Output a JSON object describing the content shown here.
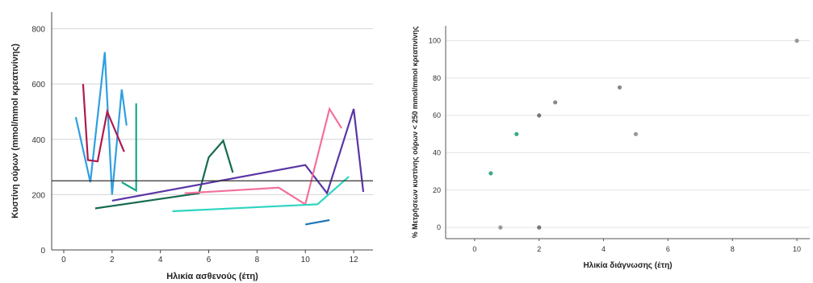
{
  "chart_data": [
    {
      "type": "line",
      "title": "",
      "xlabel": "Ηλικία ασθενούς (έτη)",
      "ylabel": "Κυστίνη ούρων (mmol/mmol κρεατινίνης)",
      "xlim": [
        -0.5,
        12.8
      ],
      "ylim": [
        0,
        860
      ],
      "xticks": [
        0,
        2,
        4,
        6,
        8,
        10,
        12
      ],
      "yticks": [
        0,
        200,
        400,
        600,
        800
      ],
      "grid": "horizontal",
      "reference_line": 250,
      "series": [
        {
          "color": "#2f9fe0",
          "x": [
            0.5,
            1.1,
            1.7,
            2.0,
            2.4,
            2.6
          ],
          "y": [
            480,
            245,
            715,
            200,
            580,
            450
          ]
        },
        {
          "color": "#b0184f",
          "x": [
            0.8,
            1.0,
            1.4,
            1.8,
            2.5
          ],
          "y": [
            600,
            325,
            320,
            500,
            355
          ]
        },
        {
          "color": "#17a88a",
          "x": [
            2.4,
            3.0,
            3.0
          ],
          "y": [
            245,
            215,
            530
          ]
        },
        {
          "color": "#166b4d",
          "x": [
            1.3,
            5.6,
            6.0,
            6.6,
            7.0
          ],
          "y": [
            150,
            205,
            335,
            395,
            280
          ]
        },
        {
          "color": "#5a35a5",
          "x": [
            2.0,
            10.0,
            10.9,
            12.0,
            12.4
          ],
          "y": [
            178,
            307,
            205,
            510,
            210
          ]
        },
        {
          "color": "#f2709c",
          "x": [
            5.0,
            8.9,
            10.0,
            11.0,
            11.5
          ],
          "y": [
            205,
            225,
            165,
            510,
            440
          ]
        },
        {
          "color": "#2ed5c0",
          "x": [
            4.5,
            10.5,
            11.8
          ],
          "y": [
            140,
            165,
            265
          ]
        },
        {
          "color": "#1f78b4",
          "x": [
            10.0,
            11.0
          ],
          "y": [
            92,
            108
          ]
        }
      ]
    },
    {
      "type": "scatter",
      "title": "",
      "xlabel": "Ηλικία διάγνωσης (έτη)",
      "ylabel": "% Μετρήσεων κυστίνης ούρων < 250 mmol/mmol κρεατινίνης",
      "xlim": [
        -0.9,
        10.4
      ],
      "ylim": [
        -6,
        108
      ],
      "xticks": [
        0,
        2,
        4,
        6,
        8,
        10
      ],
      "yticks": [
        0,
        20,
        40,
        60,
        80,
        100
      ],
      "grid": "horizontal",
      "points": [
        {
          "x": 0.5,
          "y": 29,
          "color": "#3aaa8a"
        },
        {
          "x": 0.8,
          "y": 0,
          "color": "#999999"
        },
        {
          "x": 1.3,
          "y": 50,
          "color": "#3aaa8a"
        },
        {
          "x": 2.0,
          "y": 60,
          "color": "#777777"
        },
        {
          "x": 2.0,
          "y": 0,
          "color": "#777777"
        },
        {
          "x": 2.5,
          "y": 67,
          "color": "#888888"
        },
        {
          "x": 4.5,
          "y": 75,
          "color": "#888888"
        },
        {
          "x": 5.0,
          "y": 50,
          "color": "#999999"
        },
        {
          "x": 10.0,
          "y": 100,
          "color": "#999999"
        }
      ]
    }
  ]
}
